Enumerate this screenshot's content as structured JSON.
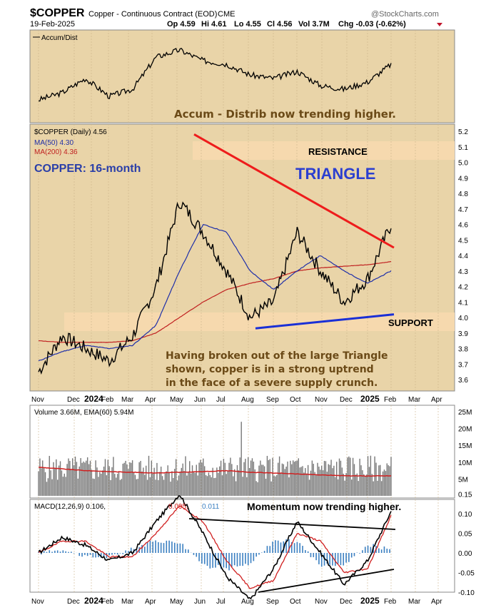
{
  "header": {
    "symbol": "$COPPER",
    "description": "Copper - Continuous Contract (EOD)",
    "exchange": "CME",
    "watermark": "@StockCharts.com",
    "date": "19-Feb-2025",
    "quote": {
      "open": "Op 4.59",
      "high": "Hi 4.61",
      "low": "Lo 4.55",
      "close": "Cl 4.56",
      "volume": "Vol 3.7M",
      "change": "Chg -0.03 (-0.62%)"
    }
  },
  "colors": {
    "panel_bg": "#e9d4a8",
    "band": "#f7d9ae",
    "price": "#000000",
    "ma50": "#1f2fa8",
    "ma200": "#c02020",
    "triangle_top": "#ee1c1c",
    "triangle_bottom": "#1a2fd6",
    "volume": "#777777",
    "macd_hist": "#3a7fc1",
    "annotation": "#6b4a17"
  },
  "accum_panel": {
    "label": "Accum/Dist",
    "annotation": "Accum - Distrib now trending higher."
  },
  "price_panel": {
    "legend": [
      "$COPPER (Daily) 4.56",
      "MA(50) 4.30",
      "MA(200) 4.36"
    ],
    "subtitle": "COPPER: 16-month",
    "triangle_label": "TRIANGLE",
    "resistance_label": "RESISTANCE",
    "support_label": "SUPPORT",
    "commentary": [
      "Having broken out of the large Triangle",
      "shown, copper is in a strong uptrend",
      "in the face of a severe supply crunch."
    ],
    "y_ticks": [
      "5.2",
      "5.1",
      "5.0",
      "4.9",
      "4.8",
      "4.7",
      "4.6",
      "4.5",
      "4.4",
      "4.3",
      "4.2",
      "4.1",
      "4.0",
      "3.9",
      "3.8",
      "3.7",
      "3.6"
    ]
  },
  "x_axis": [
    "Nov",
    "Dec",
    "2024",
    "Feb",
    "Mar",
    "Apr",
    "May",
    "Jun",
    "Jul",
    "Aug",
    "Sep",
    "Oct",
    "Nov",
    "Dec",
    "2025",
    "Feb",
    "Mar",
    "Apr"
  ],
  "volume_panel": {
    "legend": "Volume 3.66M, EMA(60) 5.94M",
    "y_ticks": [
      "25M",
      "20M",
      "15M",
      "10M",
      "5M"
    ]
  },
  "macd_panel": {
    "legend_main": "MACD(12,26,9) 0.106,",
    "legend_signal": "0.095,",
    "legend_hist": "0.011",
    "annotation": "Momentum now trending higher.",
    "y_ticks": [
      "0.15",
      "0.10",
      "0.05",
      "0.00",
      "-0.05",
      "-0.10"
    ]
  },
  "chart_data": {
    "type": "line",
    "title": "Copper - Continuous Contract (EOD)",
    "x": [
      "Nov",
      "Dec",
      "2024",
      "Feb",
      "Mar",
      "Apr",
      "May",
      "Jun",
      "Jul",
      "Aug",
      "Sep",
      "Oct",
      "Nov",
      "Dec",
      "2025",
      "Feb"
    ],
    "series": [
      {
        "name": "$COPPER (Daily)",
        "values": [
          3.65,
          3.88,
          3.8,
          3.72,
          3.88,
          4.2,
          4.75,
          4.55,
          4.3,
          4.0,
          4.1,
          4.55,
          4.3,
          4.1,
          4.25,
          4.6
        ]
      },
      {
        "name": "MA(50)",
        "values": [
          3.72,
          3.78,
          3.82,
          3.8,
          3.82,
          3.95,
          4.3,
          4.6,
          4.55,
          4.3,
          4.18,
          4.3,
          4.4,
          4.3,
          4.22,
          4.3
        ]
      },
      {
        "name": "MA(200)",
        "values": [
          3.85,
          3.84,
          3.84,
          3.84,
          3.85,
          3.9,
          4.0,
          4.1,
          4.18,
          4.22,
          4.25,
          4.3,
          4.32,
          4.33,
          4.34,
          4.36
        ]
      }
    ],
    "ylim": [
      3.55,
      5.25
    ],
    "current": {
      "price": 4.56,
      "ma50": 4.3,
      "ma200": 4.36
    },
    "triangle": {
      "upper": [
        [
          "May",
          5.18
        ],
        [
          "Feb",
          4.45
        ]
      ],
      "lower": [
        [
          "Aug",
          3.93
        ],
        [
          "Feb",
          4.02
        ]
      ]
    },
    "volume": {
      "last": "3.66M",
      "ema60": "5.94M",
      "ylim": [
        0,
        25
      ]
    },
    "macd": {
      "macd": 0.106,
      "signal": 0.095,
      "histogram": 0.011,
      "ylim": [
        -0.13,
        0.17
      ]
    }
  }
}
